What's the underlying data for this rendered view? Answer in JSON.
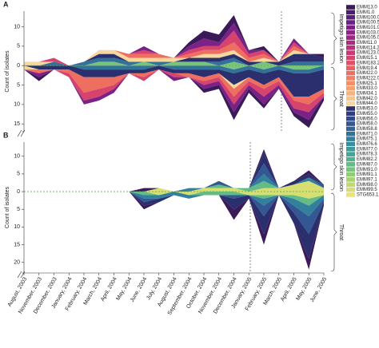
{
  "chart_data": {
    "type": "area",
    "categories": [
      "August, 2003",
      "November, 2003",
      "December, 2003",
      "January, 2004",
      "February, 2004",
      "March, 2004",
      "April, 2004",
      "May, 2004",
      "June, 2004",
      "July, 2004",
      "August, 2004",
      "September, 2004",
      "October, 2004",
      "November, 2004",
      "December, 2004",
      "January, 2005",
      "February, 2005",
      "March, 2005",
      "April, 2005",
      "May, 2005",
      "June, 2005"
    ],
    "panels": [
      {
        "label": "A",
        "ylabel": "Count of isolates",
        "top_label": "Impetigo skin lesion",
        "bottom_label": "Throat",
        "ylim": [
          -17,
          14
        ],
        "yticks": [
          10,
          5,
          0,
          {
            "value": -5,
            "label": "5"
          },
          {
            "value": -10,
            "label": "10"
          },
          {
            "value": -15,
            "label": "15"
          }
        ]
      },
      {
        "label": "B",
        "ylabel": "Count of isolates",
        "top_label": "Impetigo skin lesion",
        "bottom_label": "Throat",
        "ylim": [
          -23,
          14
        ],
        "yticks": [
          10,
          5,
          0,
          {
            "value": -5,
            "label": "5"
          },
          {
            "value": -10,
            "label": "10"
          },
          {
            "value": -15,
            "label": "15"
          },
          {
            "value": -20,
            "label": "20"
          }
        ]
      }
    ],
    "series": [
      {
        "name": "EMM13.0",
        "color": "#3b1a5a",
        "skin": [
          [
            0,
            0,
            0,
            0,
            0,
            0,
            0,
            0,
            0,
            0,
            0,
            1,
            2,
            2,
            2,
            0,
            1,
            0,
            0,
            0,
            1
          ],
          [
            0,
            0,
            0,
            0,
            0,
            0,
            0,
            0,
            1,
            0,
            0,
            0,
            0,
            0,
            0,
            0,
            1,
            0,
            0,
            1,
            0
          ]
        ],
        "throat": [
          [
            0,
            1,
            0,
            0,
            0,
            0,
            0,
            0,
            0,
            0,
            0,
            0,
            1,
            1,
            2,
            1,
            1,
            0,
            1,
            2,
            1
          ],
          [
            0,
            0,
            0,
            0,
            0,
            0,
            0,
            0,
            1,
            0,
            0,
            0,
            0,
            0,
            3,
            0,
            3,
            0,
            0,
            3,
            0
          ]
        ]
      },
      {
        "name": "EMM1.0",
        "color": "#4a1d6e"
      },
      {
        "name": "EMM100.0",
        "color": "#5a1f7a"
      },
      {
        "name": "EMM100.5",
        "color": "#6b2183"
      },
      {
        "name": "EMM101.0",
        "color": "#7c2286",
        "skin": [
          [
            0,
            0,
            0,
            0,
            0,
            0,
            0,
            0,
            1,
            0,
            0,
            1,
            2,
            1,
            2,
            1,
            0,
            0,
            1,
            0,
            0
          ],
          null
        ],
        "throat": [
          [
            0,
            1,
            0,
            0,
            1,
            1,
            1,
            0,
            0,
            0,
            1,
            0,
            1,
            1,
            2,
            1,
            2,
            1,
            1,
            2,
            0
          ],
          null
        ]
      },
      {
        "name": "EMM103.0",
        "color": "#8d2387"
      },
      {
        "name": "EMM105.0",
        "color": "#9e2585"
      },
      {
        "name": "EMM11.0",
        "color": "#ae2981"
      },
      {
        "name": "EMM114.2",
        "color": "#bd307b"
      },
      {
        "name": "EMM123.0",
        "color": "#ca3874"
      },
      {
        "name": "EMM15.1",
        "color": "#d6436d",
        "skin": [
          [
            0,
            0,
            1,
            0,
            0,
            0,
            0,
            0,
            1,
            0,
            0,
            1,
            1,
            1,
            3,
            1,
            1,
            0,
            1,
            0,
            0
          ],
          null
        ],
        "throat": [
          [
            0,
            0,
            0,
            1,
            2,
            2,
            1,
            0,
            1,
            0,
            1,
            0,
            1,
            1,
            2,
            1,
            2,
            1,
            2,
            2,
            1
          ],
          null
        ]
      },
      {
        "name": "EMM183.2",
        "color": "#e04f67"
      },
      {
        "name": "EMM19.4",
        "color": "#e85e62"
      },
      {
        "name": "EMM22.0",
        "color": "#ee6e5f",
        "skin": [
          [
            0,
            0,
            0,
            0,
            0,
            0,
            0,
            1,
            1,
            1,
            0,
            1,
            1,
            1,
            2,
            1,
            1,
            0,
            1,
            0,
            0
          ],
          null
        ],
        "throat": [
          [
            0,
            1,
            0,
            1,
            4,
            3,
            2,
            0,
            1,
            0,
            0,
            1,
            1,
            1,
            2,
            1,
            1,
            1,
            1,
            2,
            1
          ],
          null
        ]
      },
      {
        "name": "EMM222.0",
        "color": "#f27f60"
      },
      {
        "name": "EMM25.1",
        "color": "#f59066"
      },
      {
        "name": "EMM33.0",
        "color": "#f7a16f"
      },
      {
        "name": "EMM34.1",
        "color": "#f8b27b"
      },
      {
        "name": "EMM42.0",
        "color": "#f9c38a"
      },
      {
        "name": "EMM44.0",
        "color": "#f7d79e",
        "skin": [
          [
            1,
            1,
            0,
            0,
            0,
            1,
            1,
            1,
            1,
            1,
            1,
            0,
            1,
            1,
            1,
            0,
            1,
            0,
            1,
            0,
            0
          ],
          null
        ],
        "throat": [
          [
            1,
            0,
            0,
            0,
            0,
            0,
            0,
            0,
            0,
            0,
            0,
            0,
            0,
            0,
            1,
            0,
            0,
            0,
            0,
            0,
            0
          ],
          null
        ]
      },
      {
        "name": "EMM53.0",
        "color": "#2b2f6e",
        "skin": [
          [
            0,
            0,
            0,
            0,
            0,
            1,
            1,
            0,
            0,
            0,
            0,
            1,
            1,
            1,
            1,
            1,
            0,
            1,
            2,
            2,
            1
          ],
          [
            0,
            0,
            0,
            0,
            0,
            0,
            0,
            0,
            0,
            0,
            0,
            0,
            0,
            0,
            0,
            0,
            3,
            0,
            1,
            1,
            0
          ]
        ],
        "throat": [
          [
            0,
            1,
            1,
            1,
            2,
            2,
            2,
            1,
            1,
            1,
            1,
            1,
            2,
            1,
            3,
            2,
            3,
            2,
            6,
            6,
            5
          ],
          [
            0,
            0,
            0,
            0,
            0,
            0,
            0,
            0,
            1,
            1,
            0,
            0,
            0,
            0,
            3,
            1,
            5,
            0,
            3,
            7,
            1
          ]
        ]
      },
      {
        "name": "EMM55.0",
        "color": "#2f3c7e"
      },
      {
        "name": "EMM56.0",
        "color": "#31498a"
      },
      {
        "name": "EMM58.0",
        "color": "#325792",
        "skin": [
          null,
          [
            0,
            0,
            0,
            0,
            0,
            0,
            0,
            0,
            0,
            0,
            0,
            0,
            0,
            1,
            0,
            0,
            3,
            0,
            0,
            0,
            1
          ]
        ],
        "throat": [
          null,
          [
            0,
            0,
            0,
            0,
            0,
            0,
            0,
            0,
            1,
            0,
            0,
            0,
            0,
            0,
            1,
            0,
            3,
            0,
            2,
            5,
            1
          ]
        ]
      },
      {
        "name": "EMM58.8",
        "color": "#326597"
      },
      {
        "name": "EMM71.0",
        "color": "#32729a",
        "skin": [
          [
            0,
            0,
            1,
            0,
            1,
            1,
            1,
            1,
            0,
            1,
            0,
            0,
            0,
            1,
            1,
            0,
            0,
            0,
            1,
            1,
            1
          ],
          null
        ],
        "throat": [
          [
            0,
            0,
            0,
            0,
            1,
            1,
            1,
            1,
            1,
            0,
            1,
            1,
            1,
            1,
            1,
            1,
            1,
            1,
            1,
            1,
            1
          ],
          null
        ]
      },
      {
        "name": "EMM75.1",
        "color": "#33809c",
        "skin": [
          null,
          [
            0,
            0,
            0,
            0,
            0,
            0,
            0,
            0,
            0,
            0,
            0,
            1,
            0,
            0,
            0,
            0,
            2,
            0,
            0,
            1,
            0
          ]
        ],
        "throat": [
          null,
          [
            0,
            0,
            0,
            0,
            0,
            0,
            0,
            0,
            1,
            1,
            1,
            1,
            0,
            0,
            0,
            0,
            2,
            0,
            2,
            3,
            1
          ]
        ]
      },
      {
        "name": "EMM76.6",
        "color": "#368d9c"
      },
      {
        "name": "EMM77.0",
        "color": "#3b9a9a"
      },
      {
        "name": "EMM78.3",
        "color": "#44a695"
      },
      {
        "name": "EMM82.2",
        "color": "#52b18e"
      },
      {
        "name": "EMM87.0",
        "color": "#63bb86",
        "skin": [
          null,
          [
            0,
            0,
            0,
            0,
            0,
            0,
            0,
            0,
            0,
            0,
            0,
            0,
            0,
            1,
            0,
            1,
            2,
            0,
            0,
            0,
            0
          ]
        ],
        "throat": [
          null,
          [
            0,
            0,
            0,
            0,
            0,
            0,
            0,
            0,
            1,
            0,
            0,
            0,
            1,
            1,
            1,
            0,
            1,
            0,
            1,
            2,
            0
          ]
        ]
      },
      {
        "name": "EMM91.0",
        "color": "#78c47d",
        "skin": [
          [
            0,
            0,
            0,
            0,
            0,
            1,
            1,
            0,
            1,
            0,
            1,
            1,
            1,
            0,
            1,
            0,
            1,
            0,
            0,
            0,
            0
          ],
          null
        ],
        "throat": [
          [
            0,
            0,
            0,
            0,
            0,
            0,
            0,
            0,
            0,
            0,
            0,
            0,
            0,
            0,
            1,
            0,
            1,
            0,
            1,
            1,
            0
          ],
          null
        ]
      },
      {
        "name": "EMM91.1",
        "color": "#90cc75"
      },
      {
        "name": "EMM97.1",
        "color": "#a9d36f"
      },
      {
        "name": "EMM98.0",
        "color": "#c1d96d"
      },
      {
        "name": "EMM99.5",
        "color": "#d8df72",
        "skin": [
          null,
          [
            0,
            0,
            0,
            0,
            0,
            0,
            0,
            0,
            0,
            1,
            0,
            0,
            1,
            1,
            1,
            0,
            1,
            1,
            2,
            3,
            1
          ]
        ],
        "throat": [
          null,
          [
            0,
            0,
            0,
            0,
            0,
            0,
            0,
            0,
            0,
            1,
            0,
            1,
            0,
            0,
            0,
            1,
            1,
            1,
            1,
            2,
            1
          ]
        ]
      },
      {
        "name": "STG653.1",
        "color": "#ebe47d"
      }
    ]
  }
}
